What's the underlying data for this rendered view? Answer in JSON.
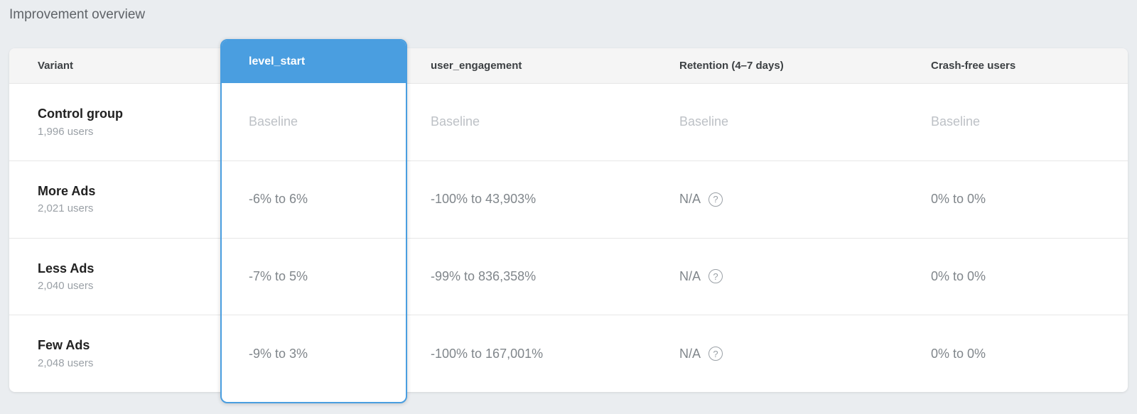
{
  "page": {
    "title": "Improvement overview",
    "background_color": "#eaedf0",
    "accent_color": "#4a9ee0"
  },
  "table": {
    "columns": [
      {
        "key": "variant",
        "label": "Variant",
        "selected": false
      },
      {
        "key": "level_start",
        "label": "level_start",
        "selected": true
      },
      {
        "key": "user_engagement",
        "label": "user_engagement",
        "selected": false
      },
      {
        "key": "retention",
        "label": "Retention (4–7 days)",
        "selected": false
      },
      {
        "key": "crash_free",
        "label": "Crash-free users",
        "selected": false
      }
    ],
    "help_icon_glyph": "?",
    "rows": [
      {
        "variant": "Control group",
        "users": "1,996 users",
        "level_start": "Baseline",
        "user_engagement": "Baseline",
        "retention": "Baseline",
        "retention_has_help": false,
        "crash_free": "Baseline",
        "is_baseline": true
      },
      {
        "variant": "More Ads",
        "users": "2,021 users",
        "level_start": "-6% to 6%",
        "user_engagement": "-100% to 43,903%",
        "retention": "N/A",
        "retention_has_help": true,
        "crash_free": "0% to 0%",
        "is_baseline": false
      },
      {
        "variant": "Less Ads",
        "users": "2,040 users",
        "level_start": "-7% to 5%",
        "user_engagement": "-99% to 836,358%",
        "retention": "N/A",
        "retention_has_help": true,
        "crash_free": "0% to 0%",
        "is_baseline": false
      },
      {
        "variant": "Few Ads",
        "users": "2,048 users",
        "level_start": "-9% to 3%",
        "user_engagement": "-100% to 167,001%",
        "retention": "N/A",
        "retention_has_help": true,
        "crash_free": "0% to 0%",
        "is_baseline": false
      }
    ]
  }
}
